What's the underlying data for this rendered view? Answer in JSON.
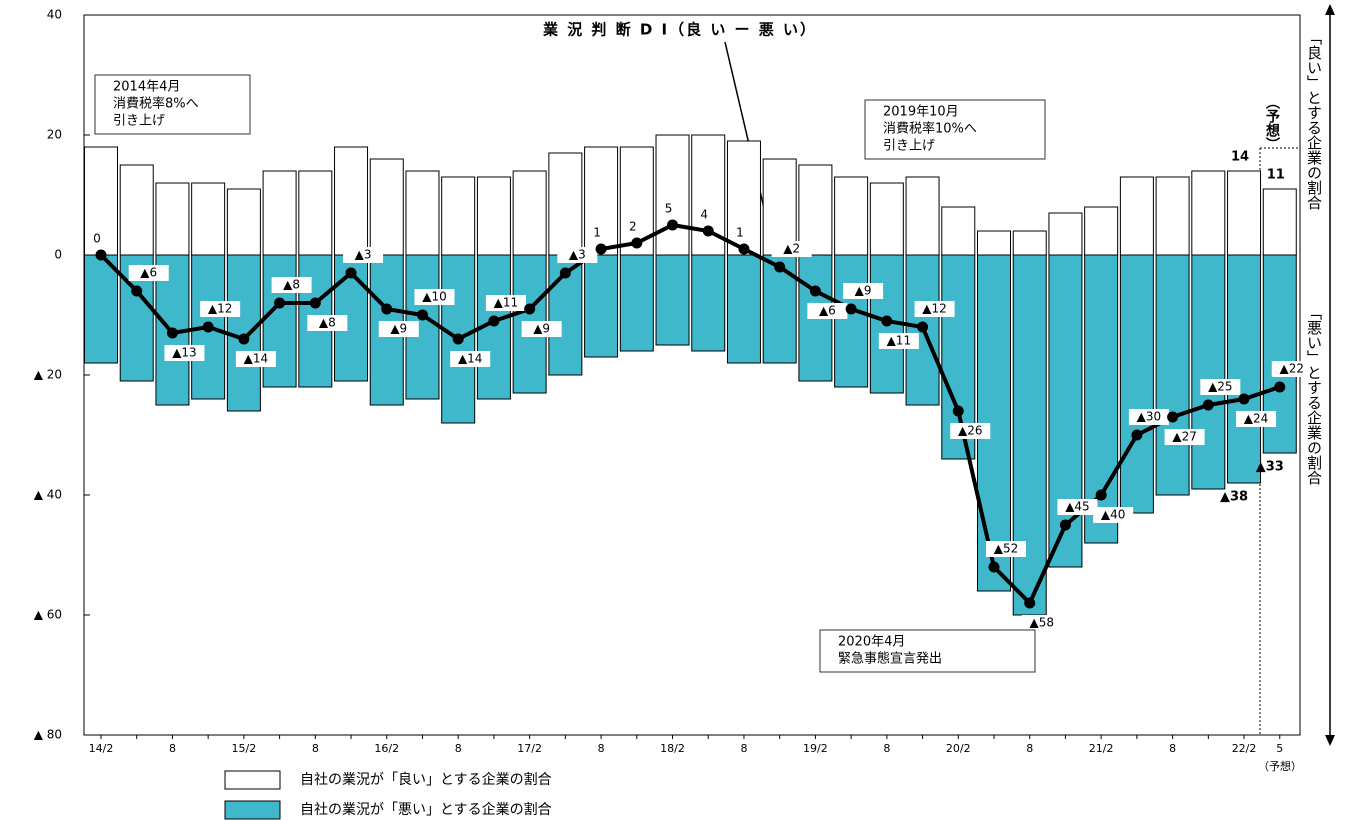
{
  "chart_data": {
    "type": "bar-line",
    "title": "業 況 判 断 D I（良 い ー 悪 い）",
    "categories": [
      "14/2",
      null,
      "8",
      null,
      "15/2",
      null,
      "8",
      null,
      "16/2",
      null,
      "8",
      null,
      "17/2",
      null,
      "8",
      null,
      "18/2",
      null,
      "8",
      null,
      "19/2",
      null,
      "8",
      null,
      "20/2",
      null,
      "8",
      null,
      "21/2",
      null,
      "8",
      null,
      "22/2",
      "5"
    ],
    "forecast_label": "（予想）",
    "ylim": [
      -80,
      40
    ],
    "yticks": [
      40,
      20,
      0,
      {
        "value": -20,
        "label": "▲ 20"
      },
      {
        "value": -40,
        "label": "▲ 40"
      },
      {
        "value": -60,
        "label": "▲ 60"
      },
      {
        "value": -80,
        "label": "▲ 80"
      }
    ],
    "series": [
      {
        "name": "自社の業況が「良い」とする企業の割合",
        "color": "#ffffff",
        "kind": "bar",
        "values": [
          18,
          15,
          12,
          12,
          11,
          14,
          14,
          18,
          16,
          14,
          13,
          13,
          14,
          17,
          18,
          18,
          20,
          20,
          19,
          16,
          15,
          13,
          12,
          13,
          8,
          4,
          4,
          7,
          8,
          13,
          13,
          14,
          14,
          11
        ],
        "value_labels": [
          null,
          null,
          null,
          null,
          null,
          null,
          null,
          null,
          null,
          null,
          null,
          null,
          null,
          null,
          null,
          null,
          null,
          null,
          null,
          null,
          null,
          null,
          null,
          null,
          null,
          null,
          null,
          null,
          null,
          null,
          null,
          null,
          "14",
          "11"
        ]
      },
      {
        "name": "自社の業況が「悪い」とする企業の割合",
        "color": "#40b8cc",
        "kind": "bar",
        "values": [
          -18,
          -21,
          -25,
          -24,
          -26,
          -22,
          -22,
          -21,
          -25,
          -24,
          -28,
          -24,
          -23,
          -20,
          -17,
          -16,
          -15,
          -16,
          -18,
          -18,
          -21,
          -22,
          -23,
          -25,
          -34,
          -56,
          -60,
          -52,
          -48,
          -43,
          -40,
          -39,
          -38,
          -33
        ],
        "value_labels": [
          null,
          null,
          null,
          null,
          null,
          null,
          null,
          null,
          null,
          null,
          null,
          null,
          null,
          null,
          null,
          null,
          null,
          null,
          null,
          null,
          null,
          null,
          null,
          null,
          null,
          null,
          null,
          null,
          null,
          null,
          null,
          null,
          "▲38",
          "▲33"
        ]
      },
      {
        "name": "業況判断DI",
        "color": "#000000",
        "kind": "line",
        "values": [
          0,
          -6,
          -13,
          -12,
          -14,
          -8,
          -8,
          -3,
          -9,
          -10,
          -14,
          -11,
          -9,
          -3,
          1,
          2,
          5,
          4,
          1,
          -2,
          -6,
          -9,
          -11,
          -12,
          -26,
          -52,
          -58,
          -45,
          -40,
          -30,
          -27,
          -25,
          -24,
          -22
        ],
        "value_labels": [
          "0",
          "▲6",
          "▲13",
          "▲12",
          "▲14",
          "▲8",
          "▲8",
          "▲3",
          "▲9",
          "▲10",
          "▲14",
          "▲11",
          "▲9",
          "▲3",
          "1",
          "2",
          "5",
          "4",
          "1",
          "▲2",
          "▲6",
          "▲9",
          "▲11",
          "▲12",
          "▲26",
          "▲52",
          "▲58",
          "▲45",
          "▲40",
          "▲30",
          "▲27",
          "▲25",
          "▲24",
          "▲22"
        ]
      }
    ],
    "annotations": [
      [
        "2014年4月",
        "消費税率8%へ",
        "引き上げ"
      ],
      [
        "2019年10月",
        "消費税率10%へ",
        "引き上げ"
      ],
      [
        "2020年4月",
        "緊急事態宣言発出"
      ]
    ],
    "right_labels": [
      "「良い」とする企業の割合",
      "「悪い」とする企業の割合",
      "（予想）"
    ]
  }
}
